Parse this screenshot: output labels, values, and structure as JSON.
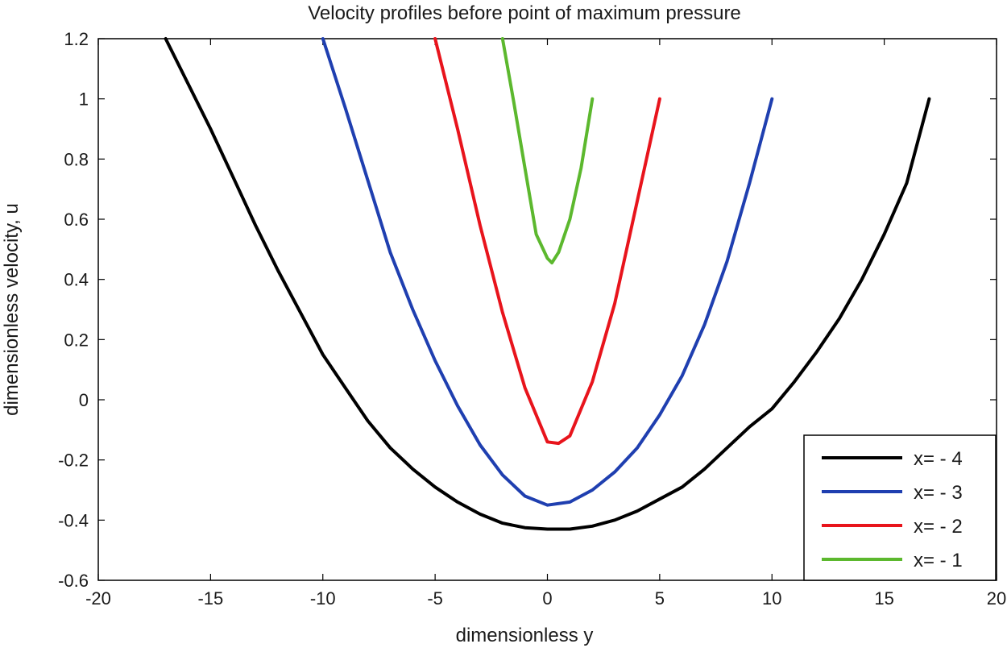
{
  "chart_data": {
    "type": "line",
    "title": "Velocity profiles before point of maximum pressure",
    "xlabel": "dimensionless y",
    "ylabel": "dimensionless velocity, u",
    "xlim": [
      -20,
      20
    ],
    "ylim": [
      -0.6,
      1.2
    ],
    "xticks": [
      "-20",
      "-15",
      "-10",
      "-5",
      "0",
      "5",
      "10",
      "15",
      "20"
    ],
    "yticks": [
      "-0.6",
      "-0.4",
      "-0.2",
      "0",
      "0.2",
      "0.4",
      "0.6",
      "0.8",
      "1",
      "1.2"
    ],
    "xtick_values": [
      -20,
      -15,
      -10,
      -5,
      0,
      5,
      10,
      15,
      20
    ],
    "ytick_values": [
      -0.6,
      -0.4,
      -0.2,
      0,
      0.2,
      0.4,
      0.6,
      0.8,
      1,
      1.2
    ],
    "legend_position": "bottom-right",
    "series": [
      {
        "name": "x= - 4",
        "color": "#000000",
        "points": [
          [
            -17,
            1.2
          ],
          [
            -16,
            1.05
          ],
          [
            -15,
            0.9
          ],
          [
            -14,
            0.74
          ],
          [
            -13,
            0.58
          ],
          [
            -12,
            0.43
          ],
          [
            -11,
            0.29
          ],
          [
            -10,
            0.15
          ],
          [
            -9,
            0.04
          ],
          [
            -8,
            -0.07
          ],
          [
            -7,
            -0.16
          ],
          [
            -6,
            -0.23
          ],
          [
            -5,
            -0.29
          ],
          [
            -4,
            -0.34
          ],
          [
            -3,
            -0.38
          ],
          [
            -2,
            -0.41
          ],
          [
            -1,
            -0.425
          ],
          [
            0,
            -0.43
          ],
          [
            1,
            -0.43
          ],
          [
            2,
            -0.42
          ],
          [
            3,
            -0.4
          ],
          [
            4,
            -0.37
          ],
          [
            5,
            -0.33
          ],
          [
            6,
            -0.29
          ],
          [
            7,
            -0.23
          ],
          [
            8,
            -0.16
          ],
          [
            9,
            -0.09
          ],
          [
            10,
            -0.03
          ],
          [
            11,
            0.06
          ],
          [
            12,
            0.16
          ],
          [
            13,
            0.27
          ],
          [
            14,
            0.4
          ],
          [
            15,
            0.55
          ],
          [
            16,
            0.72
          ],
          [
            17,
            1.0
          ]
        ]
      },
      {
        "name": "x= - 3",
        "color": "#1f3fb0",
        "points": [
          [
            -10,
            1.2
          ],
          [
            -9,
            0.97
          ],
          [
            -8,
            0.73
          ],
          [
            -7,
            0.49
          ],
          [
            -6,
            0.3
          ],
          [
            -5,
            0.13
          ],
          [
            -4,
            -0.02
          ],
          [
            -3,
            -0.15
          ],
          [
            -2,
            -0.25
          ],
          [
            -1,
            -0.32
          ],
          [
            0,
            -0.35
          ],
          [
            1,
            -0.34
          ],
          [
            2,
            -0.3
          ],
          [
            3,
            -0.24
          ],
          [
            4,
            -0.16
          ],
          [
            5,
            -0.05
          ],
          [
            6,
            0.08
          ],
          [
            7,
            0.25
          ],
          [
            8,
            0.46
          ],
          [
            9,
            0.72
          ],
          [
            10,
            1.0
          ]
        ]
      },
      {
        "name": "x= - 2",
        "color": "#e8141c",
        "points": [
          [
            -5,
            1.2
          ],
          [
            -4,
            0.9
          ],
          [
            -3,
            0.58
          ],
          [
            -2,
            0.29
          ],
          [
            -1,
            0.04
          ],
          [
            0,
            -0.14
          ],
          [
            0.5,
            -0.145
          ],
          [
            1,
            -0.12
          ],
          [
            2,
            0.06
          ],
          [
            3,
            0.32
          ],
          [
            4,
            0.66
          ],
          [
            5,
            1.0
          ]
        ]
      },
      {
        "name": "x= - 1",
        "color": "#5cb82e",
        "points": [
          [
            -2,
            1.2
          ],
          [
            -1.5,
            0.99
          ],
          [
            -1,
            0.77
          ],
          [
            -0.5,
            0.55
          ],
          [
            0,
            0.47
          ],
          [
            0.2,
            0.455
          ],
          [
            0.5,
            0.49
          ],
          [
            1,
            0.6
          ],
          [
            1.5,
            0.77
          ],
          [
            2,
            1.0
          ]
        ]
      }
    ]
  }
}
